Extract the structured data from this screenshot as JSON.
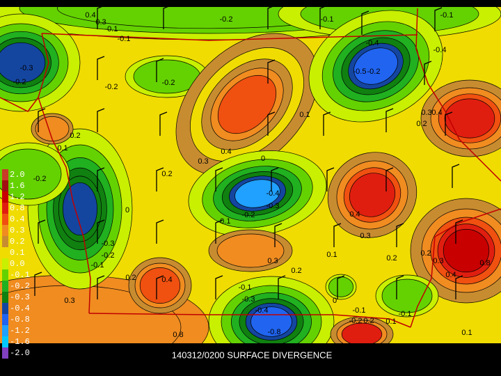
{
  "caption": "140312/0200 SURFACE DIVERGENCE",
  "legend": [
    {
      "label": "2.0",
      "color": "#c83c28"
    },
    {
      "label": "1.6",
      "color": "#a01010"
    },
    {
      "label": "1.2",
      "color": "#c80000"
    },
    {
      "label": "0.8",
      "color": "#e01e10"
    },
    {
      "label": "0.4",
      "color": "#f05010"
    },
    {
      "label": "0.3",
      "color": "#f08c20"
    },
    {
      "label": "0.2",
      "color": "#c88c30"
    },
    {
      "label": "0.1",
      "color": "#f0dc00"
    },
    {
      "label": "0.0",
      "color": "#c8f000"
    },
    {
      "label": "-0.1",
      "color": "#64d200"
    },
    {
      "label": "-0.2",
      "color": "#20b020"
    },
    {
      "label": "-0.3",
      "color": "#108010"
    },
    {
      "label": "-0.4",
      "color": "#1446a0"
    },
    {
      "label": "-0.8",
      "color": "#2064f0"
    },
    {
      "label": "-1.2",
      "color": "#20a0ff"
    },
    {
      "label": "-1.6",
      "color": "#00c8ff"
    },
    {
      "label": "-2.0",
      "color": "#8040c0"
    }
  ],
  "contour_labels": [
    "0.4",
    "0.3",
    "-0.1",
    "-0.1",
    "-0.2",
    "-0.1",
    "-0.1",
    "-0.4",
    "-0.4",
    "-0.3",
    "-0.2",
    "-0.2",
    "-0.2",
    "-0.5",
    "-0.2",
    "0.3",
    "0.4",
    "0.2",
    "0.1",
    "0.2",
    "0.1",
    "0.4",
    "0.3",
    "0",
    "0.2",
    "-0.2",
    "-0.4",
    "-0.3",
    "-0.2",
    "-0.1",
    "0",
    "0.4",
    "0.3",
    "0.1",
    "0.2",
    "0.2",
    "0.3",
    "-0.3",
    "-0.2",
    "-0.1",
    "0.3",
    "0.2",
    "0.2",
    "0.4",
    "0.3",
    "-0.1",
    "-0.3",
    "-0.4",
    "-0.8",
    "0.8",
    "0",
    "-0.1",
    "-0.2",
    "0.2",
    "0.1",
    "-0.1",
    "0.4",
    "0.8",
    "0.1"
  ]
}
